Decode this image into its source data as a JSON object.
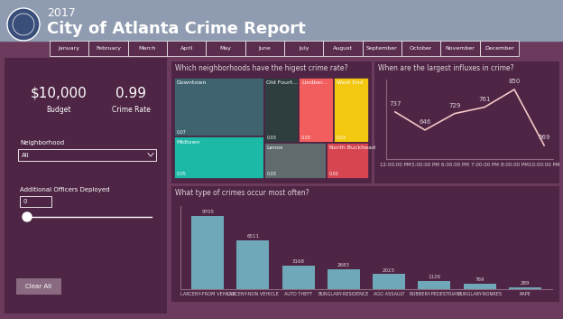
{
  "header": {
    "year": "2017",
    "title": "City of Atlanta Crime Report"
  },
  "tabs": [
    "January",
    "February",
    "March",
    "April",
    "May",
    "June",
    "July",
    "August",
    "September",
    "October",
    "November",
    "December"
  ],
  "cards": [
    {
      "value": "$10,000",
      "label": "Budget"
    },
    {
      "value": "0.99",
      "label": "Crime Rate"
    }
  ],
  "filters": {
    "neighborhood": {
      "label": "Neighborhood",
      "value": "All"
    },
    "officers": {
      "label": "Additional Officers Deployed",
      "value": 0
    }
  },
  "button": "Clear All",
  "chart_data": [
    {
      "type": "treemap",
      "title": "Which neighborhoods have the higest crime rate?",
      "categories": [
        "Downtown",
        "Midtown",
        "Old Fourt...",
        "Lindber...",
        "West End",
        "Lenox",
        "North Buckhead"
      ],
      "values": [
        0.07,
        0.05,
        0.03,
        0.03,
        0.03,
        0.03,
        0.02
      ],
      "colors": [
        "#3f6470",
        "#1bb9a6",
        "#2e3d3e",
        "#f25d5d",
        "#f2c811",
        "#5f6b6d",
        "#d64550"
      ],
      "data_labels": true
    },
    {
      "type": "line",
      "title": "When are the largest influxes in crime?",
      "categories": [
        "12:00:00 PM",
        "5:00:00 PM",
        "6:00:00 PM",
        "7:00:00 PM",
        "8:00:00 PM",
        "10:00:00 PM"
      ],
      "values": [
        737,
        646,
        729,
        761,
        850,
        569
      ],
      "color": "#f4c6c6",
      "marker": "none",
      "ylim": [
        500,
        900
      ],
      "tick_labels": "x",
      "data_labels": true
    },
    {
      "type": "bar",
      "title": "What type of crimes occur most often?",
      "categories": [
        "LARCENY-FROM VEHICLE",
        "LARCENY-NON VEHICLE",
        "AUTO THEFT",
        "BURGLARY-RESIDENCE",
        "AGG ASSAULT",
        "ROBBERY-PEDESTRIAN",
        "BURGLARY-NONRES",
        "RAPE"
      ],
      "values": [
        9705,
        6511,
        3168,
        2683,
        2023,
        1126,
        769,
        289
      ],
      "color": "#6fa8b8",
      "ylim": [
        0,
        11000
      ],
      "tick_labels": "x",
      "data_labels": true
    }
  ]
}
